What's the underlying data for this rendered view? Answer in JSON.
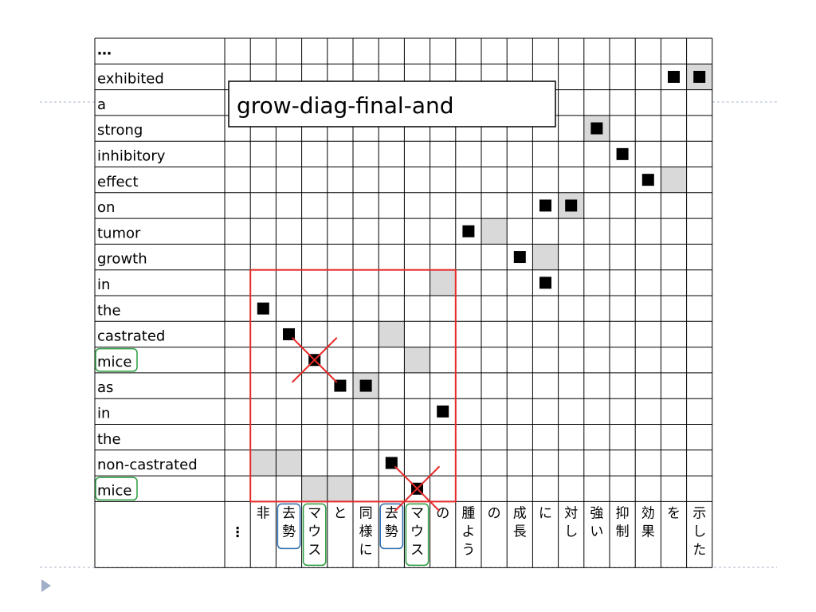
{
  "title": "grow-diag-final-and",
  "english_words": [
    "…",
    "exhibited",
    "a",
    "strong",
    "inhibitory",
    "effect",
    "on",
    "tumor",
    "growth",
    "in",
    "the",
    "castrated",
    "mice",
    "as",
    "in",
    "the",
    "non-castrated",
    "mice"
  ],
  "japanese_columns": [
    [
      "⋮"
    ],
    [
      "非"
    ],
    [
      "去",
      "勢"
    ],
    [
      "マ",
      "ウ",
      "ス"
    ],
    [
      "と"
    ],
    [
      "同",
      "様",
      "に"
    ],
    [
      "去",
      "勢"
    ],
    [
      "マ",
      "ウ",
      "ス"
    ],
    [
      "の"
    ],
    [
      "腫",
      "よ",
      "う"
    ],
    [
      "の"
    ],
    [
      "成",
      "長"
    ],
    [
      "に"
    ],
    [
      "対",
      "し"
    ],
    [
      "強",
      "い"
    ],
    [
      "抑",
      "制"
    ],
    [
      "効",
      "果"
    ],
    [
      "を"
    ],
    [
      "示",
      "し",
      "た"
    ]
  ],
  "alignments_black": [
    [
      1,
      17
    ],
    [
      1,
      18
    ],
    [
      3,
      14
    ],
    [
      4,
      15
    ],
    [
      5,
      16
    ],
    [
      6,
      12
    ],
    [
      6,
      13
    ],
    [
      7,
      9
    ],
    [
      8,
      11
    ],
    [
      9,
      12
    ],
    [
      10,
      1
    ],
    [
      11,
      2
    ],
    [
      12,
      3
    ],
    [
      13,
      4
    ],
    [
      13,
      5
    ],
    [
      14,
      8
    ],
    [
      16,
      6
    ],
    [
      17,
      7
    ]
  ],
  "alignments_gray": [
    [
      1,
      18
    ],
    [
      3,
      14
    ],
    [
      5,
      17
    ],
    [
      6,
      13
    ],
    [
      7,
      10
    ],
    [
      8,
      12
    ],
    [
      9,
      8
    ],
    [
      11,
      6
    ],
    [
      12,
      7
    ],
    [
      13,
      5
    ],
    [
      16,
      1
    ],
    [
      16,
      2
    ],
    [
      17,
      3
    ],
    [
      17,
      4
    ]
  ],
  "crossed_cells": [
    [
      12,
      3
    ],
    [
      17,
      7
    ]
  ],
  "highlight_region": {
    "row_start": 9,
    "row_end": 17,
    "col_start": 1,
    "col_end": 8
  },
  "green_boxed_rows": [
    12,
    17
  ],
  "green_boxed_cols": [
    3,
    7
  ],
  "blue_boxed_cols": [
    2,
    6
  ],
  "colors": {
    "grid": "#000000",
    "gray_fill": "#d9d9d9",
    "black_fill": "#000000",
    "red": "#e52b2b",
    "green": "#2a9d3f",
    "blue": "#2b6cb0",
    "rule": "#a8b6c8",
    "bullet": "#9fb0c8"
  }
}
